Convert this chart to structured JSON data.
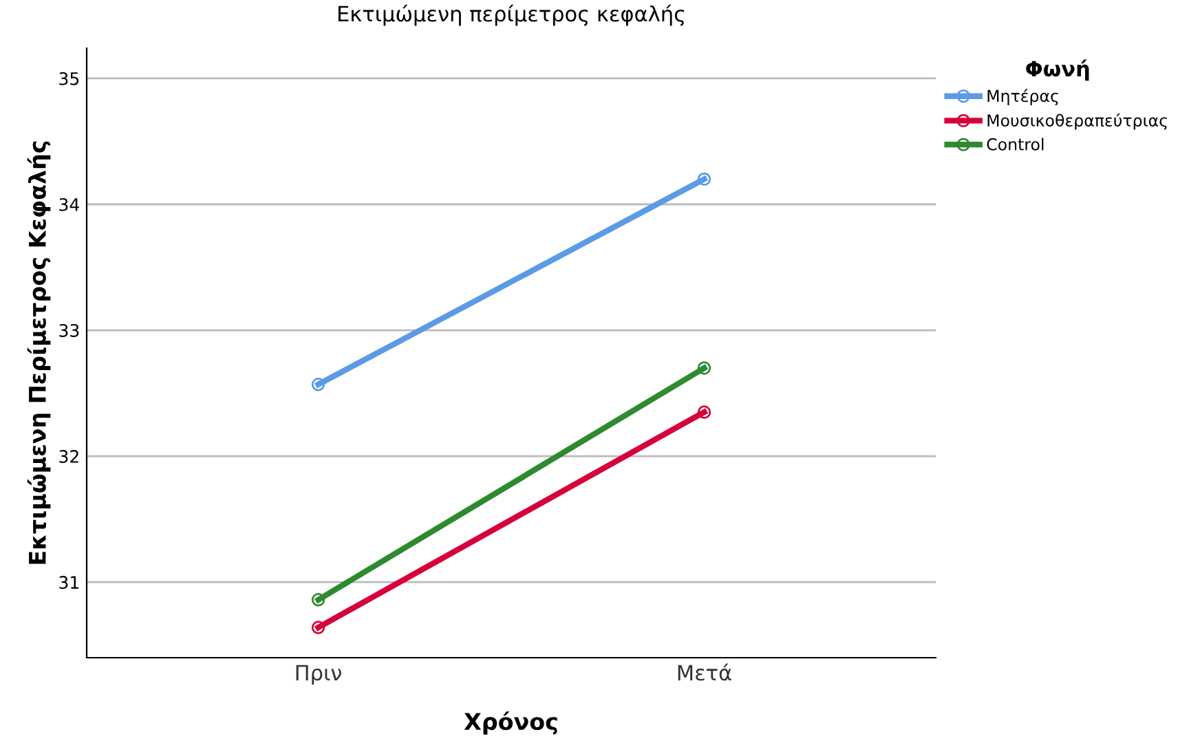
{
  "chart_data": {
    "type": "line",
    "title": "Εκτιμώμενη περίμετρος κεφαλής",
    "xlabel": "Χρόνος",
    "ylabel": "Εκτιμώμενη Περίμετρος Κεφαλής",
    "legend_title": "Φωνή",
    "categories": [
      "Πριν",
      "Μετά"
    ],
    "series": [
      {
        "name": "Μητέρας",
        "color": "#5b9be6",
        "values": [
          32.57,
          34.2
        ]
      },
      {
        "name": "Μουσικοθεραπεύτριας",
        "color": "#d6003a",
        "values": [
          30.64,
          32.35
        ]
      },
      {
        "name": "Control",
        "color": "#2f8a2f",
        "values": [
          30.86,
          32.7
        ]
      }
    ],
    "ylim": [
      30.4,
      35.24
    ],
    "yticks": [
      31,
      32,
      33,
      34,
      35
    ],
    "grid": "y",
    "legend": "top right",
    "marker": "circle",
    "line_style": "solid"
  }
}
